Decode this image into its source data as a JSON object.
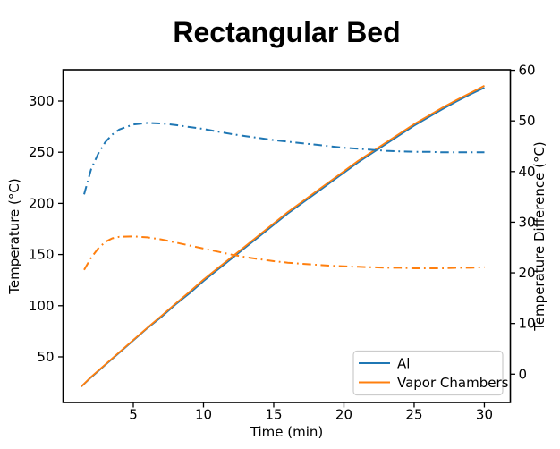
{
  "title": "Rectangular Bed",
  "chart_data": {
    "type": "line",
    "title": "Rectangular Bed",
    "xlabel": "Time (min)",
    "ylabel_left": "Temperature (°C)",
    "ylabel_right": "Temperature Difference (°C)",
    "xlim": [
      0,
      31.85
    ],
    "ylim_left": [
      5.4,
      330.6
    ],
    "ylim_right": [
      -5.6,
      60.1
    ],
    "xticks": [
      5,
      10,
      15,
      20,
      25,
      30
    ],
    "yticks_left": [
      50,
      100,
      150,
      200,
      250,
      300
    ],
    "yticks_right": [
      0,
      10,
      20,
      30,
      40,
      50,
      60
    ],
    "grid": false,
    "legend_position": "lower right",
    "legend": [
      {
        "label": "Al",
        "color": "#1f77b4"
      },
      {
        "label": "Vapor Chambers",
        "color": "#ff7f0e"
      }
    ],
    "series": [
      {
        "name": "al-temperature",
        "axis": "left",
        "line_style": "solid",
        "color": "#1f77b4",
        "x": [
          1.3,
          2,
          3,
          4,
          5,
          6,
          7,
          8,
          9,
          10,
          11,
          12,
          13,
          14,
          15,
          16,
          17,
          18,
          19,
          20,
          21,
          22,
          23,
          24,
          25,
          26,
          27,
          28,
          29,
          30
        ],
        "y": [
          21,
          30,
          42,
          54,
          66,
          78,
          89,
          101,
          112,
          124,
          135,
          146,
          157,
          168,
          179,
          190,
          200,
          210,
          220,
          230,
          240,
          249,
          258,
          267,
          276,
          284,
          292,
          299.5,
          306.5,
          313
        ]
      },
      {
        "name": "vapor-chambers-temperature",
        "axis": "left",
        "line_style": "solid",
        "color": "#ff7f0e",
        "x": [
          1.3,
          2,
          3,
          4,
          5,
          6,
          7,
          8,
          9,
          10,
          11,
          12,
          13,
          14,
          15,
          16,
          17,
          18,
          19,
          20,
          21,
          22,
          23,
          24,
          25,
          26,
          27,
          28,
          29,
          30
        ],
        "y": [
          21,
          30.5,
          42.5,
          54.5,
          66.5,
          78.5,
          90,
          102,
          113.5,
          125.5,
          136.5,
          147.5,
          158.5,
          169.5,
          180.5,
          191.5,
          201.5,
          211.5,
          221.5,
          231.5,
          241.5,
          250.5,
          259.5,
          268.5,
          277.5,
          285.5,
          293.5,
          301,
          308,
          315
        ]
      },
      {
        "name": "al-temperature-difference",
        "axis": "right",
        "line_style": "dashdot",
        "color": "#1f77b4",
        "x": [
          1.5,
          2,
          2.5,
          3,
          3.5,
          4,
          5,
          6,
          7,
          8,
          9,
          10,
          11,
          12,
          13,
          14,
          15,
          16,
          17,
          18,
          19,
          20,
          21,
          22,
          23,
          24,
          25,
          26,
          27,
          28,
          29,
          30
        ],
        "y": [
          35.5,
          40.5,
          43.5,
          45.8,
          47.3,
          48.3,
          49.3,
          49.6,
          49.5,
          49.2,
          48.8,
          48.4,
          47.9,
          47.4,
          47,
          46.6,
          46.2,
          45.9,
          45.6,
          45.3,
          45,
          44.7,
          44.5,
          44.3,
          44.1,
          44,
          43.9,
          43.9,
          43.8,
          43.8,
          43.8,
          43.8
        ]
      },
      {
        "name": "vapor-chambers-temperature-difference",
        "axis": "right",
        "line_style": "dashdot",
        "color": "#ff7f0e",
        "x": [
          1.5,
          2,
          2.5,
          3,
          3.5,
          4,
          5,
          6,
          7,
          8,
          9,
          10,
          11,
          12,
          13,
          14,
          15,
          16,
          17,
          18,
          19,
          20,
          21,
          22,
          23,
          24,
          25,
          26,
          27,
          28,
          29,
          30
        ],
        "y": [
          20.6,
          23,
          24.8,
          26.1,
          26.8,
          27.1,
          27.2,
          27,
          26.6,
          26,
          25.4,
          24.8,
          24.2,
          23.6,
          23.1,
          22.7,
          22.3,
          22,
          21.8,
          21.6,
          21.4,
          21.3,
          21.2,
          21.1,
          21,
          21,
          20.9,
          20.9,
          20.9,
          21,
          21,
          21.1
        ]
      }
    ],
    "colors": {
      "spine": "#000000",
      "tick": "#000000",
      "legend_border": "#cccccc",
      "legend_background": "#ffffff"
    }
  }
}
